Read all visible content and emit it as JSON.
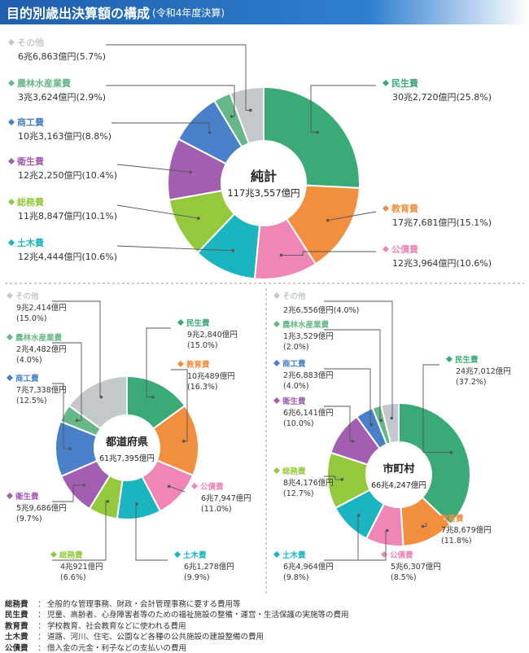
{
  "header": {
    "title": "目的別歳出決算額の構成",
    "subtitle": "(令和4年度決算)"
  },
  "colors": {
    "minsei": "#3aaa77",
    "kyoiku": "#f28f3f",
    "kousai": "#ef86b5",
    "doboku": "#1ab5c1",
    "soumu": "#95c93d",
    "eisei": "#a25eb0",
    "shoko": "#4a80c9",
    "norin": "#66b888",
    "sonota": "#c3c8cc"
  },
  "chart_data": [
    {
      "type": "pie",
      "center_label": "純計",
      "center_value": "117兆3,557億円",
      "slices": [
        {
          "key": "minsei",
          "label": "民生費",
          "amount": "30兆2,720億円",
          "share": "(25.8%)",
          "value": 25.8
        },
        {
          "key": "kyoiku",
          "label": "教育費",
          "amount": "17兆7,681億円",
          "share": "(15.1%)",
          "value": 15.1
        },
        {
          "key": "kousai",
          "label": "公債費",
          "amount": "12兆3,964億円",
          "share": "(10.6%)",
          "value": 10.6
        },
        {
          "key": "doboku",
          "label": "土木費",
          "amount": "12兆4,444億円",
          "share": "(10.6%)",
          "value": 10.6
        },
        {
          "key": "soumu",
          "label": "総務費",
          "amount": "11兆8,847億円",
          "share": "(10.1%)",
          "value": 10.1
        },
        {
          "key": "eisei",
          "label": "衛生費",
          "amount": "12兆2,250億円",
          "share": "(10.4%)",
          "value": 10.4
        },
        {
          "key": "shoko",
          "label": "商工費",
          "amount": "10兆3,163億円",
          "share": "(8.8%)",
          "value": 8.8
        },
        {
          "key": "norin",
          "label": "農林水産業費",
          "amount": "3兆3,624億円",
          "share": "(2.9%)",
          "value": 2.9
        },
        {
          "key": "sonota",
          "label": "その他",
          "amount": "6兆6,863億円",
          "share": "(5.7%)",
          "value": 5.7
        }
      ]
    },
    {
      "type": "pie",
      "center_label": "都道府県",
      "center_value": "61兆7,395億円",
      "slices": [
        {
          "key": "minsei",
          "label": "民生費",
          "amount": "9兆2,840億円",
          "share": "(15.0%)",
          "value": 15.0
        },
        {
          "key": "kyoiku",
          "label": "教育費",
          "amount": "10兆489億円",
          "share": "(16.3%)",
          "value": 16.3
        },
        {
          "key": "kousai",
          "label": "公債費",
          "amount": "6兆7,947億円",
          "share": "(11.0%)",
          "value": 11.0
        },
        {
          "key": "doboku",
          "label": "土木費",
          "amount": "6兆1,278億円",
          "share": "(9.9%)",
          "value": 9.9
        },
        {
          "key": "soumu",
          "label": "総務費",
          "amount": "4兆921億円",
          "share": "(6.6%)",
          "value": 6.6
        },
        {
          "key": "eisei",
          "label": "衛生費",
          "amount": "5兆9,686億円",
          "share": "(9.7%)",
          "value": 9.7
        },
        {
          "key": "shoko",
          "label": "商工費",
          "amount": "7兆7,338億円",
          "share": "(12.5%)",
          "value": 12.5
        },
        {
          "key": "norin",
          "label": "農林水産業費",
          "amount": "2兆4,482億円",
          "share": "(4.0%)",
          "value": 4.0
        },
        {
          "key": "sonota",
          "label": "その他",
          "amount": "9兆2,414億円",
          "share": "(15.0%)",
          "value": 15.0
        }
      ]
    },
    {
      "type": "pie",
      "center_label": "市町村",
      "center_value": "66兆4,247億円",
      "slices": [
        {
          "key": "minsei",
          "label": "民生費",
          "amount": "24兆7,012億円",
          "share": "(37.2%)",
          "value": 37.2
        },
        {
          "key": "kyoiku",
          "label": "教育費",
          "amount": "7兆8,679億円",
          "share": "(11.8%)",
          "value": 11.8
        },
        {
          "key": "kousai",
          "label": "公債費",
          "amount": "5兆6,307億円",
          "share": "(8.5%)",
          "value": 8.5
        },
        {
          "key": "doboku",
          "label": "土木費",
          "amount": "6兆4,964億円",
          "share": "(9.8%)",
          "value": 9.8
        },
        {
          "key": "soumu",
          "label": "総務費",
          "amount": "8兆4,176億円",
          "share": "(12.7%)",
          "value": 12.7
        },
        {
          "key": "eisei",
          "label": "衛生費",
          "amount": "6兆6,141億円",
          "share": "(10.0%)",
          "value": 10.0
        },
        {
          "key": "shoko",
          "label": "商工費",
          "amount": "2兆6,883億円",
          "share": "(4.0%)",
          "value": 4.0
        },
        {
          "key": "norin",
          "label": "農林水産業費",
          "amount": "1兆3,529億円",
          "share": "(2.0%)",
          "value": 2.0
        },
        {
          "key": "sonota",
          "label": "その他",
          "amount": "2兆6,556億円",
          "share": "(4.0%)",
          "value": 4.0
        }
      ]
    }
  ],
  "notes": [
    {
      "term": "総務費",
      "desc": "全般的な管理事務、財政・会計管理事務に要する費用等"
    },
    {
      "term": "民生費",
      "desc": "児童、高齢者、心身障害者等のための福祉施設の整備・運営・生活保護の実施等の費用"
    },
    {
      "term": "教育費",
      "desc": "学校教育、社会教育などに使われる費用"
    },
    {
      "term": "土木費",
      "desc": "道路、河川、住宅、公園など各種の公共施設の建設整備の費用"
    },
    {
      "term": "公債費",
      "desc": "借入金の元金・利子などの支払いの費用"
    }
  ]
}
